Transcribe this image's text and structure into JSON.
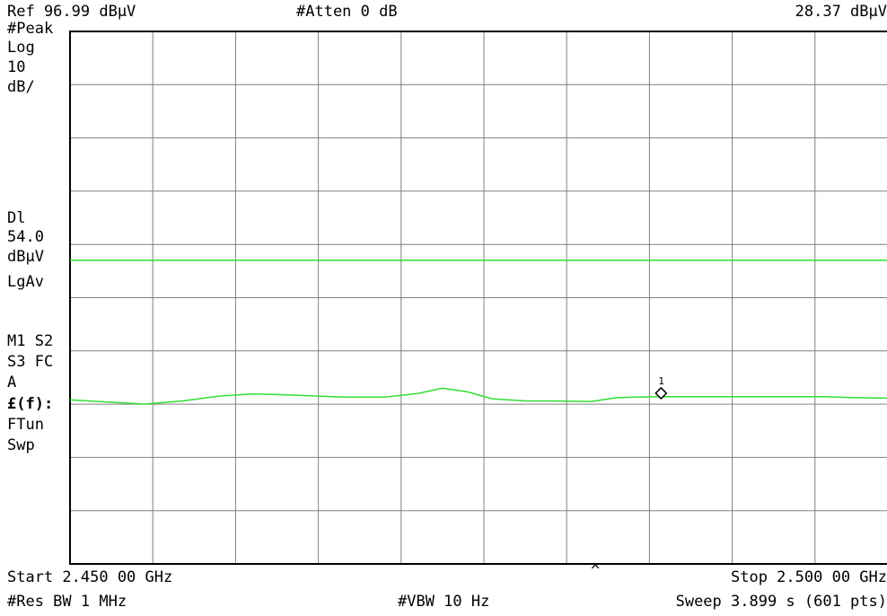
{
  "header": {
    "ref_level": "Ref 96.99 dBµV",
    "atten": "#Atten 0 dB",
    "marker_readout": "28.37 dBµV"
  },
  "left_panel": {
    "detector": "#Peak",
    "scale_type": "Log",
    "scale_value": "10",
    "scale_unit": "dB/",
    "display_line_label": "Dl",
    "display_line_value": "54.0",
    "display_line_unit": "dBµV",
    "averaging": "LgAv",
    "trace_state_1": "M1  S2",
    "trace_state_2": "S3  FC",
    "trace_state_3": "A",
    "ef_label": "£(f):",
    "ftun": "FTun",
    "swp": "Swp"
  },
  "footer": {
    "start": "Start 2.450 00 GHz",
    "stop": "Stop 2.500 00 GHz",
    "res_bw": "#Res BW 1 MHz",
    "vbw": "#VBW 10 Hz",
    "sweep": "Sweep 3.899 s (601 pts)",
    "caret": "^"
  },
  "marker": {
    "label": "1"
  },
  "colors": {
    "grid": "#7f7f7f",
    "frame": "#000000",
    "trace": "#33dd33",
    "display_line": "#33dd33"
  },
  "chart_data": {
    "type": "line",
    "xlim": [
      2.45,
      2.5
    ],
    "ylim": [
      -3.01,
      96.99
    ],
    "x_unit": "GHz",
    "y_unit": "dBµV",
    "display_line": 54.0,
    "series": [
      {
        "x": [
          2.45,
          2.4523,
          2.4545,
          2.4568,
          2.459,
          2.461,
          2.4625,
          2.465,
          2.4668,
          2.469,
          2.471,
          2.4725,
          2.474,
          2.4755,
          2.4775,
          2.479,
          2.4815,
          2.483,
          2.484,
          2.4857,
          2.488,
          2.4905,
          2.4935,
          2.4955,
          2.4975,
          2.5
        ],
        "values": [
          27.8,
          27.4,
          27.0,
          27.6,
          28.5,
          28.9,
          28.8,
          28.5,
          28.3,
          28.3,
          29.0,
          30.0,
          29.3,
          28.0,
          27.6,
          27.6,
          27.5,
          28.2,
          28.3,
          28.4,
          28.4,
          28.4,
          28.4,
          28.4,
          28.2,
          28.1
        ]
      }
    ],
    "markers": [
      {
        "name": "1",
        "x": 2.4857,
        "y": 28.37
      }
    ]
  }
}
